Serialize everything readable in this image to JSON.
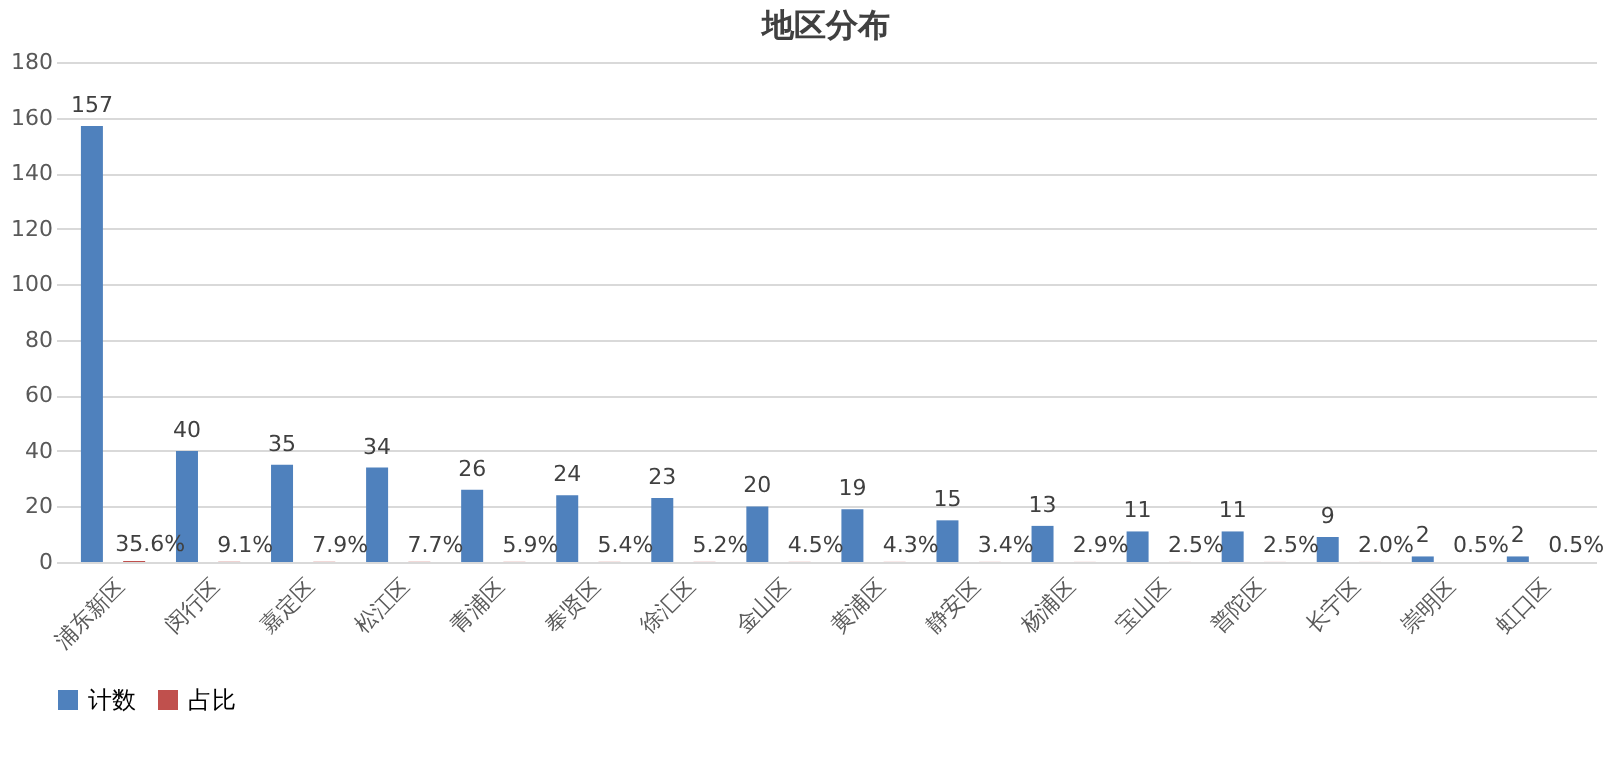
{
  "chart_data": {
    "type": "bar",
    "title": "地区分布",
    "categories": [
      "浦东新区",
      "闵行区",
      "嘉定区",
      "松江区",
      "青浦区",
      "奉贤区",
      "徐汇区",
      "金山区",
      "黄浦区",
      "静安区",
      "杨浦区",
      "宝山区",
      "普陀区",
      "长宁区",
      "崇明区",
      "虹口区"
    ],
    "series": [
      {
        "name": "计数",
        "color": "#4f81bd",
        "values": [
          157,
          40,
          35,
          34,
          26,
          24,
          23,
          20,
          19,
          15,
          13,
          11,
          11,
          9,
          2,
          2
        ],
        "value_labels": [
          "157",
          "40",
          "35",
          "34",
          "26",
          "24",
          "23",
          "20",
          "19",
          "15",
          "13",
          "11",
          "11",
          "9",
          "2",
          "2"
        ]
      },
      {
        "name": "占比",
        "color": "#c0504d",
        "values": [
          0.356,
          0.091,
          0.079,
          0.077,
          0.059,
          0.054,
          0.052,
          0.045,
          0.043,
          0.034,
          0.029,
          0.025,
          0.025,
          0.02,
          0.005,
          0.005
        ],
        "value_labels": [
          "35.6%",
          "9.1%",
          "7.9%",
          "7.7%",
          "5.9%",
          "5.4%",
          "5.2%",
          "4.5%",
          "4.3%",
          "3.4%",
          "2.9%",
          "2.5%",
          "2.5%",
          "2.0%",
          "0.5%",
          "0.5%"
        ]
      }
    ],
    "ylim": [
      0,
      180
    ],
    "yticks": [
      0,
      20,
      40,
      60,
      80,
      100,
      120,
      140,
      160,
      180
    ],
    "grid": "y",
    "legend": "bottom"
  }
}
